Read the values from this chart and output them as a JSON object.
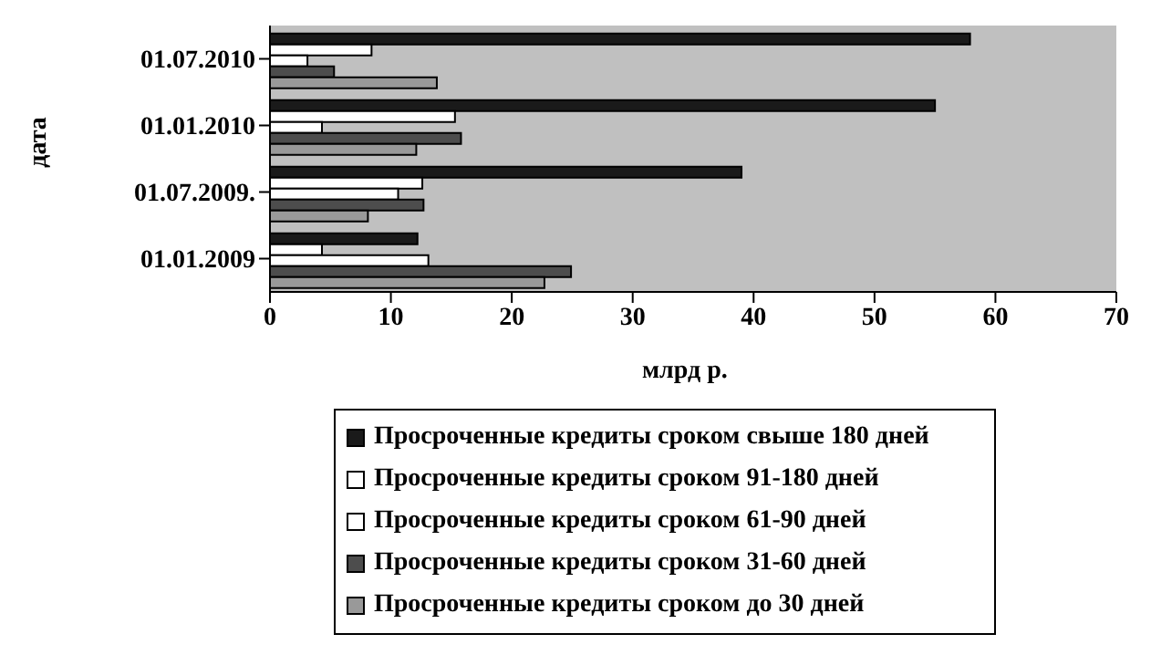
{
  "chart_data": {
    "type": "bar",
    "orientation": "horizontal",
    "ylabel": "дата",
    "xlabel": "млрд р.",
    "categories": [
      "01.07.2010",
      "01.01.2010",
      "01.07.2009.",
      "01.01.2009"
    ],
    "series": [
      {
        "name": "Просроченные кредиты сроком свыше 180 дней",
        "color": "#1a1a1a",
        "values": [
          57.9,
          55.0,
          39.0,
          12.2
        ]
      },
      {
        "name": "Просроченные кредиты сроком 91-180 дней",
        "color": "#ffffff",
        "values": [
          8.4,
          15.3,
          12.6,
          4.3
        ]
      },
      {
        "name": "Просроченные кредиты сроком 61-90 дней",
        "color": "#ffffff",
        "values": [
          3.1,
          4.3,
          10.6,
          13.1
        ]
      },
      {
        "name": "Просроченные кредиты сроком 31-60 дней",
        "color": "#4d4d4d",
        "values": [
          5.3,
          15.8,
          12.7,
          24.9
        ]
      },
      {
        "name": "Просроченные кредиты сроком до 30 дней",
        "color": "#999999",
        "values": [
          13.8,
          12.1,
          8.1,
          22.7
        ]
      }
    ],
    "xlim": [
      0,
      70
    ],
    "xticks": [
      0,
      10,
      20,
      30,
      40,
      50,
      60,
      70
    ],
    "legend": "bottom"
  }
}
